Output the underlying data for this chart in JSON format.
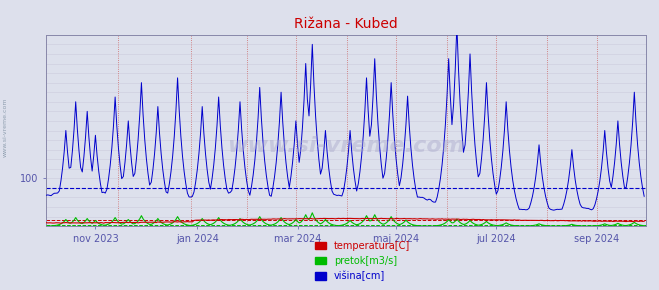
{
  "title": "Rižana - Kubed",
  "title_color": "#cc0000",
  "background_color": "#dde0ec",
  "plot_bg_color": "#dde0ec",
  "watermark": "www.si-vreme.com",
  "watermark_color": "#aaaacc",
  "watermark_alpha": 0.45,
  "tick_label_color": "#5555aa",
  "color_temp": "#cc0000",
  "color_pretok": "#00bb00",
  "color_visina": "#0000cc",
  "ylim": [
    0,
    400
  ],
  "ytick_val": 100,
  "xlim": [
    0,
    365
  ],
  "x_tick_positions": [
    30,
    92,
    153,
    213,
    274,
    335
  ],
  "x_tick_labels": [
    "nov 2023",
    "jan 2024",
    "mar 2024",
    "maj 2024",
    "jul 2024",
    "sep 2024"
  ],
  "hline_blue_y": 80,
  "hline_green_y": 2,
  "hline_red_y": 13,
  "vline_color": "#cc6666",
  "vline_positions": [
    0,
    44,
    88,
    122,
    152,
    183,
    213,
    244,
    274,
    305,
    335,
    365
  ],
  "border_color": "#8888aa",
  "side_label": "www.si-vreme.com",
  "side_label_color": "#8899aa",
  "legend_labels": [
    "temperatura[C]",
    "pretok[m3/s]",
    "višina[cm]"
  ],
  "legend_colors": [
    "#cc0000",
    "#00bb00",
    "#0000cc"
  ],
  "figsize": [
    6.59,
    2.9
  ],
  "dpi": 100
}
